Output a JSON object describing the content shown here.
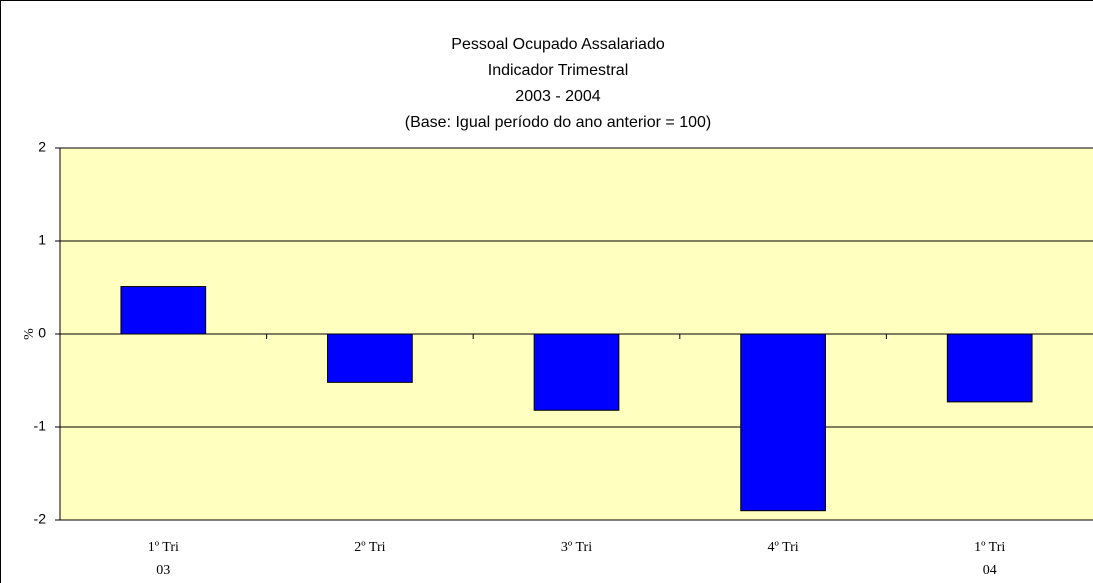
{
  "chart_data": {
    "type": "bar",
    "title": [
      "Pessoal Ocupado Assalariado",
      "Indicador Trimestral",
      "2003 - 2004",
      "(Base: Igual período do ano anterior = 100)"
    ],
    "y_label": "%",
    "categories": [
      "1º Tri",
      "2º Tri",
      "3º Tri",
      "4º Tri",
      "1º Tri"
    ],
    "category_years": [
      "03",
      null,
      null,
      null,
      "04"
    ],
    "values": [
      0.51,
      -0.52,
      -0.82,
      -1.9,
      -0.73
    ],
    "color": "#0000ff",
    "plot_background": "#ffffc0",
    "ylim": [
      -2,
      2
    ],
    "yticks": [
      -2,
      -1,
      0,
      1,
      2
    ],
    "grid": true
  }
}
